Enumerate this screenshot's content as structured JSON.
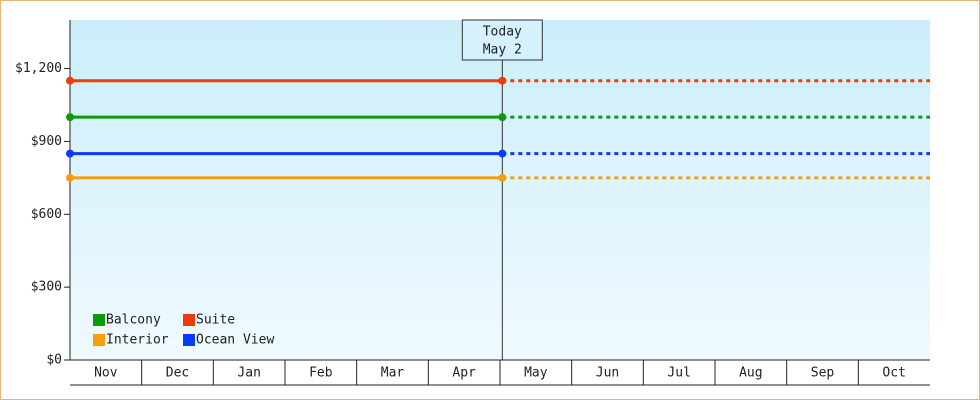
{
  "chart_data": {
    "type": "line",
    "categories": [
      "Nov",
      "Dec",
      "Jan",
      "Feb",
      "Mar",
      "Apr",
      "May",
      "Jun",
      "Jul",
      "Aug",
      "Sep",
      "Oct"
    ],
    "series": [
      {
        "name": "Balcony",
        "color": "#0a9a0a",
        "value": 1000
      },
      {
        "name": "Suite",
        "color": "#f03a0a",
        "value": 1150
      },
      {
        "name": "Interior",
        "color": "#f5a00a",
        "value": 750
      },
      {
        "name": "Ocean View",
        "color": "#0a3af5",
        "value": 850
      }
    ],
    "annotation": {
      "label": "Today",
      "date": "May 2"
    },
    "ylim": [
      0,
      1400
    ],
    "yticks": [
      {
        "value": 0,
        "label": "$0"
      },
      {
        "value": 300,
        "label": "$300"
      },
      {
        "value": 600,
        "label": "$600"
      },
      {
        "value": 900,
        "label": "$900"
      },
      {
        "value": 1200,
        "label": "$1,200"
      }
    ]
  }
}
